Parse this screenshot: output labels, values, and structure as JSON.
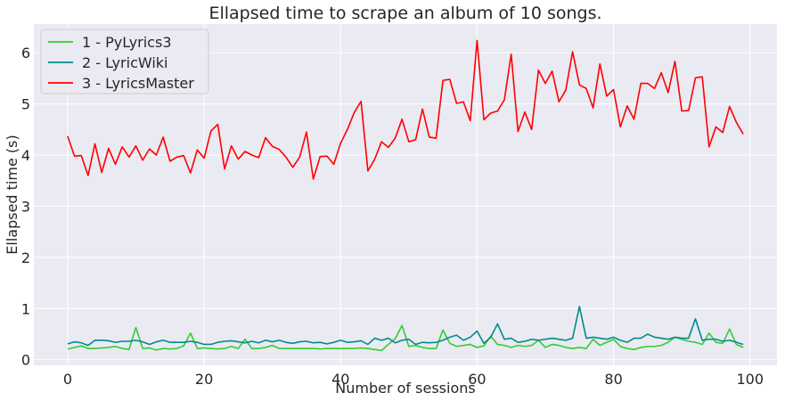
{
  "chart_data": {
    "type": "line",
    "title": "Ellapsed time to scrape an album of 10 songs.",
    "xlabel": "Number of sessions",
    "ylabel": "Ellapsed time (s)",
    "xlim": [
      -4.95,
      103.95
    ],
    "ylim": [
      -0.11,
      6.56
    ],
    "xticks": [
      0,
      20,
      40,
      60,
      80,
      100
    ],
    "yticks": [
      0,
      1,
      2,
      3,
      4,
      5,
      6
    ],
    "grid": true,
    "legend_position": "top-left",
    "series": [
      {
        "name": "1 - PyLyrics3",
        "color": "#32CD32",
        "values": [
          0.21,
          0.24,
          0.27,
          0.22,
          0.22,
          0.23,
          0.24,
          0.26,
          0.22,
          0.2,
          0.63,
          0.22,
          0.23,
          0.19,
          0.22,
          0.21,
          0.22,
          0.27,
          0.52,
          0.22,
          0.23,
          0.22,
          0.21,
          0.22,
          0.26,
          0.22,
          0.4,
          0.22,
          0.22,
          0.24,
          0.28,
          0.22,
          0.22,
          0.22,
          0.22,
          0.22,
          0.22,
          0.21,
          0.22,
          0.22,
          0.22,
          0.22,
          0.22,
          0.23,
          0.22,
          0.2,
          0.18,
          0.3,
          0.41,
          0.67,
          0.26,
          0.28,
          0.24,
          0.22,
          0.22,
          0.58,
          0.32,
          0.26,
          0.28,
          0.3,
          0.24,
          0.27,
          0.46,
          0.3,
          0.28,
          0.24,
          0.28,
          0.26,
          0.28,
          0.38,
          0.24,
          0.3,
          0.28,
          0.24,
          0.22,
          0.24,
          0.22,
          0.4,
          0.28,
          0.34,
          0.4,
          0.26,
          0.22,
          0.2,
          0.24,
          0.26,
          0.26,
          0.28,
          0.34,
          0.44,
          0.4,
          0.36,
          0.34,
          0.3,
          0.52,
          0.34,
          0.32,
          0.6,
          0.3,
          0.24
        ]
      },
      {
        "name": "2 - LyricWiki",
        "color": "#008B8B",
        "values": [
          0.31,
          0.35,
          0.33,
          0.28,
          0.38,
          0.38,
          0.37,
          0.34,
          0.36,
          0.36,
          0.38,
          0.35,
          0.3,
          0.35,
          0.38,
          0.34,
          0.34,
          0.34,
          0.36,
          0.34,
          0.3,
          0.3,
          0.34,
          0.36,
          0.37,
          0.35,
          0.33,
          0.36,
          0.33,
          0.38,
          0.35,
          0.38,
          0.34,
          0.32,
          0.35,
          0.36,
          0.33,
          0.34,
          0.31,
          0.34,
          0.38,
          0.34,
          0.35,
          0.37,
          0.3,
          0.42,
          0.38,
          0.42,
          0.33,
          0.38,
          0.4,
          0.3,
          0.34,
          0.33,
          0.34,
          0.38,
          0.44,
          0.48,
          0.38,
          0.44,
          0.56,
          0.32,
          0.44,
          0.7,
          0.4,
          0.42,
          0.34,
          0.36,
          0.4,
          0.38,
          0.4,
          0.42,
          0.4,
          0.38,
          0.42,
          1.04,
          0.42,
          0.44,
          0.42,
          0.4,
          0.44,
          0.38,
          0.34,
          0.42,
          0.42,
          0.5,
          0.44,
          0.42,
          0.4,
          0.44,
          0.42,
          0.42,
          0.8,
          0.38,
          0.4,
          0.4,
          0.36,
          0.38,
          0.34,
          0.3
        ]
      },
      {
        "name": "3 - LyricsMaster",
        "color": "#FF0000",
        "values": [
          4.37,
          3.98,
          3.99,
          3.6,
          4.22,
          3.66,
          4.13,
          3.82,
          4.16,
          3.96,
          4.18,
          3.9,
          4.12,
          4.0,
          4.35,
          3.88,
          3.96,
          3.99,
          3.65,
          4.1,
          3.94,
          4.47,
          4.6,
          3.73,
          4.18,
          3.92,
          4.07,
          4.0,
          3.95,
          4.34,
          4.17,
          4.11,
          3.96,
          3.76,
          3.96,
          4.45,
          3.53,
          3.97,
          3.98,
          3.82,
          4.23,
          4.5,
          4.83,
          5.05,
          3.69,
          3.92,
          4.26,
          4.15,
          4.33,
          4.7,
          4.26,
          4.3,
          4.9,
          4.35,
          4.33,
          5.46,
          5.48,
          5.01,
          5.04,
          4.67,
          6.24,
          4.69,
          4.82,
          4.86,
          5.08,
          5.97,
          4.46,
          4.84,
          4.5,
          5.66,
          5.4,
          5.64,
          5.04,
          5.27,
          6.02,
          5.37,
          5.3,
          4.92,
          5.78,
          5.15,
          5.28,
          4.55,
          4.96,
          4.7,
          5.4,
          5.4,
          5.3,
          5.61,
          5.22,
          5.83,
          4.86,
          4.87,
          5.51,
          5.53,
          4.16,
          4.55,
          4.44,
          4.95,
          4.64,
          4.41
        ]
      }
    ]
  }
}
